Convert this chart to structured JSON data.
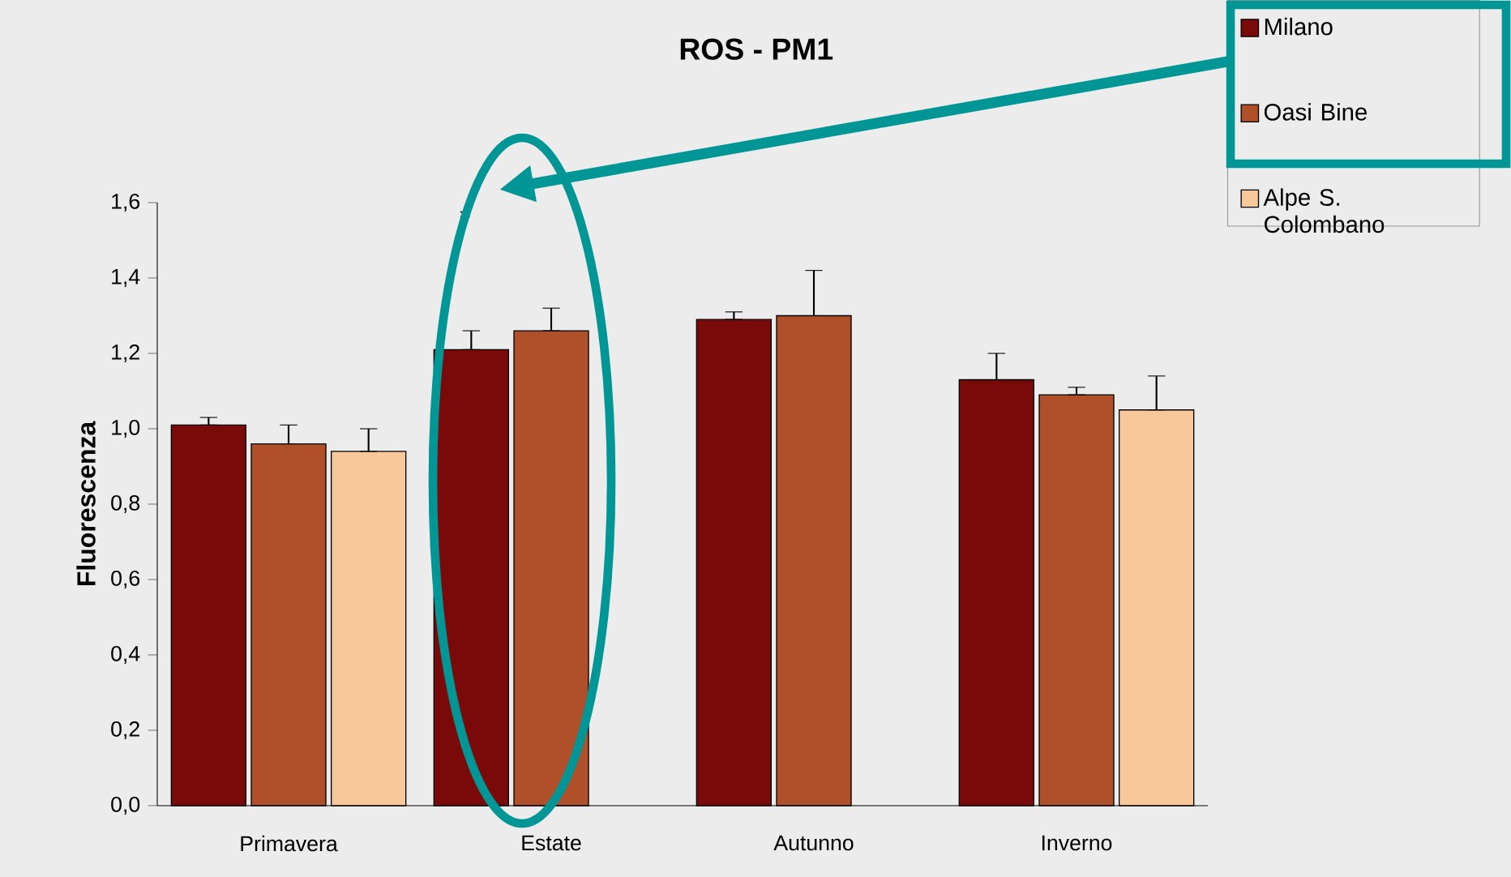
{
  "chart_data": {
    "type": "bar",
    "title": "ROS - PM1",
    "ylabel": "Fluorescenza",
    "categories": [
      "Primavera",
      "Estate",
      "Autunno",
      "Inverno"
    ],
    "series": [
      {
        "name": "Milano",
        "color": "#7a0a0a",
        "values": [
          1.01,
          1.21,
          1.29,
          1.13
        ],
        "errors": [
          [
            1.01,
            1.03
          ],
          [
            1.21,
            1.26
          ],
          [
            1.29,
            1.31
          ],
          [
            1.13,
            1.2
          ]
        ]
      },
      {
        "name": "Oasi Bine",
        "color": "#b0502a",
        "values": [
          0.96,
          1.26,
          1.3,
          1.09
        ],
        "errors": [
          [
            0.96,
            1.01
          ],
          [
            1.26,
            1.32
          ],
          [
            1.3,
            1.42
          ],
          [
            1.09,
            1.11
          ]
        ]
      },
      {
        "name": "Alpe S. Colombano",
        "color": "#f9c89a",
        "values": [
          0.94,
          null,
          null,
          1.05
        ],
        "errors": [
          [
            0.94,
            1.0
          ],
          null,
          null,
          [
            1.05,
            1.14
          ]
        ]
      }
    ],
    "ylim": [
      0,
      1.6
    ],
    "yticks": [
      {
        "value": 0,
        "label": "0,0"
      },
      {
        "value": 0.2,
        "label": "0,2"
      },
      {
        "value": 0.4,
        "label": "0,4"
      },
      {
        "value": 0.6,
        "label": "0,6"
      },
      {
        "value": 0.8,
        "label": "0,8"
      },
      {
        "value": 1.0,
        "label": "1,0"
      },
      {
        "value": 1.2,
        "label": "1,2"
      },
      {
        "value": 1.4,
        "label": "1,4"
      },
      {
        "value": 1.6,
        "label": "1,6"
      }
    ],
    "annotations": [
      "*"
    ],
    "legend": "top right",
    "grid": false
  }
}
